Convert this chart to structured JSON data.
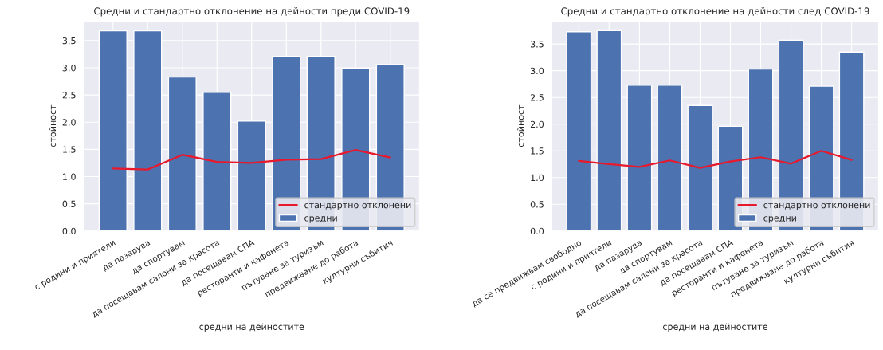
{
  "chart_data": [
    {
      "type": "bar",
      "title": "Средни и стандартно отклонение на дейности преди COVID-19",
      "xlabel": "средни на дейностите",
      "ylabel": "стойност",
      "categories": [
        "с родини и приятели",
        "да пазарува",
        "да спортувам",
        "да посещавам салони за красота",
        "да посещавам СПА",
        "ресторанти и кафенета",
        "пътуване за туризъм",
        "предвижване до работа",
        "културни събития"
      ],
      "series": [
        {
          "name": "стандартно отклонени",
          "type": "line",
          "color": "#e8192c",
          "values": [
            1.15,
            1.13,
            1.4,
            1.27,
            1.25,
            1.31,
            1.32,
            1.49,
            1.35
          ]
        },
        {
          "name": "средни",
          "color": "#4c72b0",
          "values": [
            3.68,
            3.68,
            2.83,
            2.55,
            2.02,
            3.21,
            3.21,
            2.99,
            3.06
          ]
        }
      ],
      "ylim": [
        0,
        3.86
      ],
      "yticks": [
        {
          "value": 0,
          "label": "0.0"
        },
        0.5,
        {
          "value": 1,
          "label": "1.0"
        },
        1.5,
        {
          "value": 2,
          "label": "2.0"
        },
        2.5,
        {
          "value": 3,
          "label": "3.0"
        },
        3.5
      ],
      "grid": true,
      "legend": "lower right"
    },
    {
      "type": "bar",
      "title": "Средни и стандартно отклонение на дейности след COVID-19",
      "xlabel": "средни на дейностите",
      "ylabel": "стойност",
      "categories": [
        "да се предвижвам свободно",
        "с родини и приятели",
        "да пазарува",
        "да спортувам",
        "да посещавам салони за красота",
        "да посещавам СПА",
        "ресторанти и кафенета",
        "пътуване за туризъм",
        "предвижване до работа",
        "културни събития"
      ],
      "series": [
        {
          "name": "стандартно отклонени",
          "type": "line",
          "color": "#e8192c",
          "values": [
            1.31,
            1.25,
            1.2,
            1.32,
            1.18,
            1.3,
            1.38,
            1.26,
            1.5,
            1.33
          ]
        },
        {
          "name": "средни",
          "color": "#4c72b0",
          "values": [
            3.73,
            3.75,
            2.73,
            2.73,
            2.35,
            1.96,
            3.03,
            3.57,
            2.71,
            3.35
          ]
        }
      ],
      "ylim": [
        0,
        3.93
      ],
      "yticks": [
        {
          "value": 0,
          "label": "0.0"
        },
        0.5,
        {
          "value": 1,
          "label": "1.0"
        },
        1.5,
        {
          "value": 2,
          "label": "2.0"
        },
        2.5,
        {
          "value": 3,
          "label": "3.0"
        },
        3.5
      ],
      "grid": true,
      "legend": "lower right"
    }
  ]
}
